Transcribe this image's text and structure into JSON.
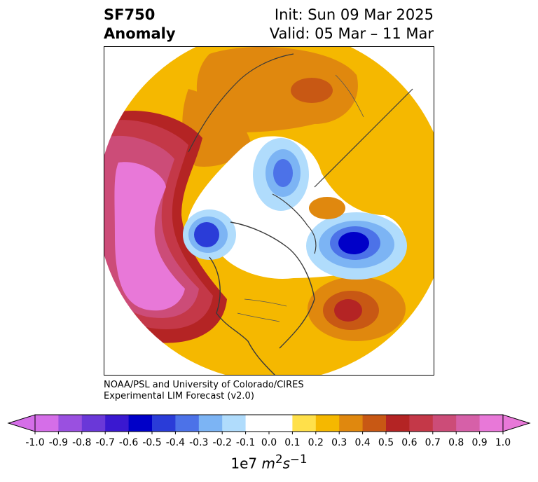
{
  "header": {
    "variable": "SF750",
    "kind": "Anomaly",
    "init": "Init: Sun 09 Mar 2025",
    "valid": "Valid: 05 Mar – 11 Mar"
  },
  "credit": {
    "line1": "NOAA/PSL and University of Colorado/CIRES",
    "line2": "Experimental LIM Forecast (v2.0)"
  },
  "colorbar": {
    "levels": [
      "-1.0",
      "-0.9",
      "-0.8",
      "-0.7",
      "-0.6",
      "-0.5",
      "-0.4",
      "-0.3",
      "-0.2",
      "-0.1",
      "0.0",
      "0.1",
      "0.2",
      "0.3",
      "0.4",
      "0.5",
      "0.6",
      "0.7",
      "0.8",
      "0.9",
      "1.0"
    ],
    "colors": [
      "#d56ee8",
      "#9a50e0",
      "#6a38d8",
      "#3a18d0",
      "#0000c8",
      "#2a3cd8",
      "#4c72e8",
      "#7cb4f4",
      "#b0dcfc",
      "#ffffff",
      "#ffffff",
      "#ffe04a",
      "#f5b800",
      "#e0880e",
      "#c85814",
      "#b42424",
      "#c43848",
      "#cc4c78",
      "#d660a8",
      "#e878d8"
    ],
    "extend_min_color": "#d56ee8",
    "extend_max_color": "#e878d8",
    "unit_prefix": "1e7",
    "unit_m": "m",
    "unit_m_exp": "2",
    "unit_s": "s",
    "unit_s_exp": "−1"
  },
  "map": {
    "projection": "north-polar-stereographic",
    "palette": {
      "ocean_background": "#ffffff",
      "coast": "#3a3a3a",
      "border": "#555555"
    }
  }
}
